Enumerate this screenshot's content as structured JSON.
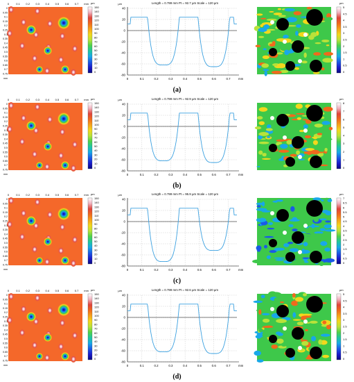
{
  "panels": [
    {
      "caption": "(a)",
      "left_map": {
        "x_ticks": [
          "0",
          "0.1",
          "0.2",
          "0.3",
          "0.4",
          "0.5",
          "0.6",
          "0.7",
          "mm"
        ],
        "y_ticks": [
          "0",
          "0.05",
          "0.1",
          "0.15",
          "0.2",
          "0.25",
          "0.3",
          "0.35",
          "0.4",
          "0.45",
          "0.5",
          "0.55",
          "0.6",
          "0.65",
          "0.7",
          "0.75",
          "mm"
        ],
        "colorbar_unit": "µm",
        "colorbar_ticks": [
          "150",
          "140",
          "130",
          "120",
          "110",
          "100",
          "90",
          "80",
          "70",
          "60",
          "50",
          "40",
          "30",
          "20",
          "10",
          "0"
        ]
      },
      "profile": {
        "header": "Length = 0.799 mm   Pt = 92.7 µm   Scale = 120 µm",
        "y_unit": "µm",
        "y_ticks": [
          "40",
          "20",
          "0",
          "-20",
          "-40",
          "-60",
          "-80"
        ],
        "x_ticks": [
          "0",
          "0.1",
          "0.2",
          "0.3",
          "0.4",
          "0.5",
          "0.6",
          "0.7"
        ],
        "x_unit": "mm"
      },
      "right_map": {
        "colorbar_unit": "µm",
        "colorbar_ticks": [
          "5",
          "4.5",
          "4",
          "3.5",
          "3",
          "2.5",
          "2",
          "1.5",
          "1",
          "0.5",
          "0"
        ]
      }
    },
    {
      "caption": "(b)",
      "left_map": {
        "x_ticks": [
          "0",
          "0.1",
          "0.2",
          "0.3",
          "0.4",
          "0.5",
          "0.6",
          "0.7",
          "mm"
        ],
        "y_ticks": [
          "0",
          "0.05",
          "0.1",
          "0.15",
          "0.2",
          "0.25",
          "0.3",
          "0.35",
          "0.4",
          "0.45",
          "0.5",
          "0.55",
          "0.6",
          "0.65",
          "0.7",
          "0.75",
          "mm"
        ],
        "colorbar_unit": "µm",
        "colorbar_ticks": [
          "150",
          "140",
          "130",
          "120",
          "110",
          "100",
          "90",
          "80",
          "70",
          "60",
          "50",
          "40",
          "30",
          "20",
          "10",
          "0"
        ]
      },
      "profile": {
        "header": "Length = 0.799 mm   Pt = 92.9 µm   Scale = 120 µm",
        "y_unit": "µm",
        "y_ticks": [
          "40",
          "20",
          "0",
          "-20",
          "-40",
          "-60",
          "-80"
        ],
        "x_ticks": [
          "0",
          "0.1",
          "0.2",
          "0.3",
          "0.4",
          "0.5",
          "0.6",
          "0.7"
        ],
        "x_unit": "mm"
      },
      "right_map": {
        "colorbar_unit": "µm",
        "colorbar_ticks": [
          "8",
          "7",
          "6",
          "5",
          "4",
          "3",
          "2",
          "1",
          "0"
        ]
      }
    },
    {
      "caption": "(c)",
      "left_map": {
        "x_ticks": [
          "0",
          "0.1",
          "0.2",
          "0.3",
          "0.4",
          "0.5",
          "0.6",
          "0.7",
          "mm"
        ],
        "y_ticks": [
          "0",
          "0.05",
          "0.1",
          "0.15",
          "0.2",
          "0.25",
          "0.3",
          "0.35",
          "0.4",
          "0.45",
          "0.5",
          "0.55",
          "0.6",
          "0.65",
          "0.7",
          "0.75",
          "mm"
        ],
        "colorbar_unit": "µm",
        "colorbar_ticks": [
          "150",
          "140",
          "130",
          "120",
          "110",
          "100",
          "90",
          "80",
          "70",
          "60",
          "50",
          "40",
          "30",
          "20",
          "10",
          "0"
        ]
      },
      "profile": {
        "header": "Length = 0.799 mm   Pt = 95.9 µm   Scale = 120 µm",
        "y_unit": "µm",
        "y_ticks": [
          "40",
          "20",
          "0",
          "-20",
          "-40",
          "-60",
          "-80"
        ],
        "x_ticks": [
          "0",
          "0.1",
          "0.2",
          "0.3",
          "0.4",
          "0.5",
          "0.6",
          "0.7"
        ],
        "x_unit": "mm"
      },
      "right_map": {
        "colorbar_unit": "µm",
        "colorbar_ticks": [
          "7",
          "6.5",
          "6",
          "5.5",
          "5",
          "4.5",
          "4",
          "3.5",
          "3",
          "2.5",
          "2",
          "1.5",
          "1",
          "0.5",
          "0"
        ]
      }
    },
    {
      "caption": "(d)",
      "left_map": {
        "x_ticks": [
          "0",
          "0.1",
          "0.2",
          "0.3",
          "0.4",
          "0.5",
          "0.6",
          "0.7",
          "mm"
        ],
        "y_ticks": [
          "0",
          "0.05",
          "0.1",
          "0.15",
          "0.2",
          "0.25",
          "0.3",
          "0.35",
          "0.4",
          "0.45",
          "0.5",
          "0.55",
          "0.6",
          "0.65",
          "0.7",
          "0.75",
          "mm"
        ],
        "colorbar_unit": "µm",
        "colorbar_ticks": [
          "150",
          "140",
          "130",
          "120",
          "110",
          "100",
          "90",
          "80",
          "70",
          "60",
          "50",
          "40",
          "30",
          "20",
          "10",
          "0"
        ]
      },
      "profile": {
        "header": "Length = 0.799 mm   Pt = 92.6 µm   Scale = 120 µm",
        "y_unit": "µm",
        "y_ticks": [
          "40",
          "20",
          "0",
          "-20",
          "-40",
          "-60",
          "-80"
        ],
        "x_ticks": [
          "0",
          "0.1",
          "0.2",
          "0.3",
          "0.4",
          "0.5",
          "0.6",
          "0.7"
        ],
        "x_unit": "mm"
      },
      "right_map": {
        "colorbar_unit": "µm",
        "colorbar_ticks": [
          "5",
          "4.5",
          "4",
          "3.5",
          "3",
          "2.5",
          "2",
          "1.5",
          "1",
          "0.5",
          "0"
        ]
      }
    }
  ],
  "colors": {
    "surface_orange": "#f4682a",
    "profile_line": "#3aa0e0",
    "dimple_blue": "#1e3bd6",
    "residual_green": "#3ec84a"
  }
}
